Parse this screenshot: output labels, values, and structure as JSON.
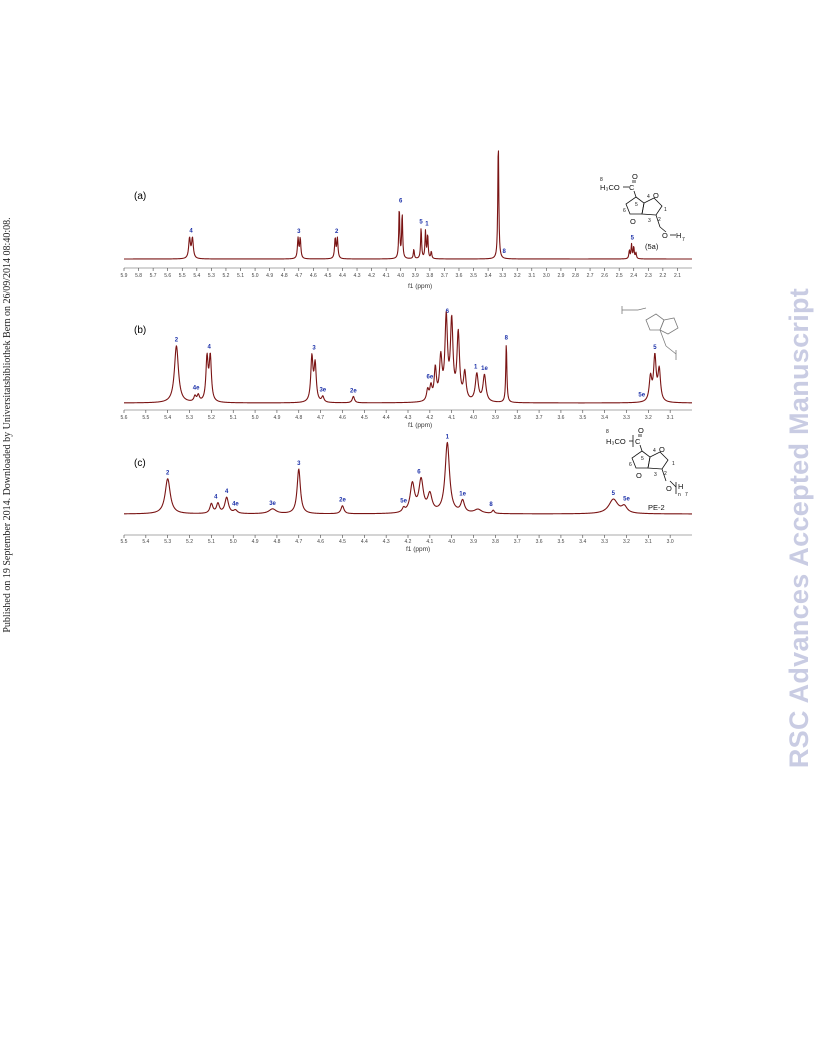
{
  "side_note": "Published on 19 September 2014. Downloaded by Universitatsbibliothek Bern on 26/09/2014 08:40:08.",
  "watermark": "RSC Advances Accepted Manuscript",
  "colors": {
    "trace": "#7a1414",
    "peak_label": "#1a2fa8",
    "watermark": "#c9cce3"
  },
  "chart_data": [
    {
      "type": "line",
      "panel": "(a)",
      "xlabel": "f1 (ppm)",
      "x_reversed": true,
      "xlim": [
        5.9,
        2.0
      ],
      "ylim": [
        0,
        1
      ],
      "x_tick_labels": [
        "5.9",
        "5.8",
        "5.7",
        "5.6",
        "5.5",
        "5.4",
        "5.3",
        "5.2",
        "5.1",
        "5.0",
        "4.9",
        "4.8",
        "4.7",
        "4.6",
        "4.5",
        "4.4",
        "4.3",
        "4.2",
        "4.1",
        "4.0",
        "3.9",
        "3.8",
        "3.7",
        "3.6",
        "3.5",
        "3.4",
        "3.3",
        "3.2",
        "3.1",
        "3.0",
        "2.9",
        "2.8",
        "2.7",
        "2.6",
        "2.5",
        "2.4",
        "2.3",
        "2.2",
        "2.1"
      ],
      "peaks": [
        {
          "ppm": 5.45,
          "height": 0.17,
          "width": 0.007
        },
        {
          "ppm": 5.43,
          "height": 0.17,
          "width": 0.007
        },
        {
          "ppm": 4.705,
          "height": 0.17,
          "width": 0.005
        },
        {
          "ppm": 4.69,
          "height": 0.17,
          "width": 0.005
        },
        {
          "ppm": 4.45,
          "height": 0.17,
          "width": 0.005
        },
        {
          "ppm": 4.435,
          "height": 0.17,
          "width": 0.005
        },
        {
          "ppm": 4.01,
          "height": 0.43,
          "width": 0.004
        },
        {
          "ppm": 3.99,
          "height": 0.38,
          "width": 0.004
        },
        {
          "ppm": 3.91,
          "height": 0.08,
          "width": 0.004
        },
        {
          "ppm": 3.86,
          "height": 0.26,
          "width": 0.004
        },
        {
          "ppm": 3.83,
          "height": 0.23,
          "width": 0.004
        },
        {
          "ppm": 3.815,
          "height": 0.2,
          "width": 0.004
        },
        {
          "ppm": 3.79,
          "height": 0.06,
          "width": 0.004
        },
        {
          "ppm": 3.33,
          "height": 1.0,
          "width": 0.004
        },
        {
          "ppm": 2.43,
          "height": 0.07,
          "width": 0.004
        },
        {
          "ppm": 2.415,
          "height": 0.12,
          "width": 0.004
        },
        {
          "ppm": 2.4,
          "height": 0.1,
          "width": 0.004
        },
        {
          "ppm": 2.385,
          "height": 0.05,
          "width": 0.004
        }
      ],
      "peak_labels": [
        {
          "text": "4",
          "ppm": 5.44
        },
        {
          "text": "3",
          "ppm": 4.7
        },
        {
          "text": "2",
          "ppm": 4.44
        },
        {
          "text": "6",
          "ppm": 4.0
        },
        {
          "text": "5",
          "ppm": 3.86
        },
        {
          "text": "1",
          "ppm": 3.82
        },
        {
          "text": "8",
          "ppm": 3.29
        },
        {
          "text": "5",
          "ppm": 2.41
        }
      ],
      "compound_label": "(5a)"
    },
    {
      "type": "line",
      "panel": "(b)",
      "xlabel": "f1 (ppm)",
      "x_reversed": true,
      "xlim": [
        5.6,
        3.0
      ],
      "ylim": [
        0,
        1
      ],
      "x_tick_labels": [
        "5.6",
        "5.5",
        "5.4",
        "5.3",
        "5.2",
        "5.1",
        "5.0",
        "4.9",
        "4.8",
        "4.7",
        "4.6",
        "4.5",
        "4.4",
        "4.3",
        "4.2",
        "4.1",
        "4.0",
        "3.9",
        "3.8",
        "3.7",
        "3.6",
        "3.5",
        "3.4",
        "3.3",
        "3.2",
        "3.1"
      ],
      "peaks": [
        {
          "ppm": 5.36,
          "height": 0.62,
          "width": 0.011
        },
        {
          "ppm": 5.275,
          "height": 0.06,
          "width": 0.006
        },
        {
          "ppm": 5.26,
          "height": 0.07,
          "width": 0.006
        },
        {
          "ppm": 5.22,
          "height": 0.47,
          "width": 0.006
        },
        {
          "ppm": 5.205,
          "height": 0.48,
          "width": 0.006
        },
        {
          "ppm": 4.74,
          "height": 0.48,
          "width": 0.006
        },
        {
          "ppm": 4.725,
          "height": 0.4,
          "width": 0.006
        },
        {
          "ppm": 4.69,
          "height": 0.06,
          "width": 0.006
        },
        {
          "ppm": 4.55,
          "height": 0.07,
          "width": 0.006
        },
        {
          "ppm": 4.21,
          "height": 0.12,
          "width": 0.006
        },
        {
          "ppm": 4.195,
          "height": 0.15,
          "width": 0.006
        },
        {
          "ppm": 4.175,
          "height": 0.34,
          "width": 0.006
        },
        {
          "ppm": 4.15,
          "height": 0.45,
          "width": 0.007
        },
        {
          "ppm": 4.125,
          "height": 0.88,
          "width": 0.007
        },
        {
          "ppm": 4.1,
          "height": 0.84,
          "width": 0.007
        },
        {
          "ppm": 4.07,
          "height": 0.72,
          "width": 0.007
        },
        {
          "ppm": 4.04,
          "height": 0.3,
          "width": 0.007
        },
        {
          "ppm": 3.985,
          "height": 0.3,
          "width": 0.008
        },
        {
          "ppm": 3.95,
          "height": 0.29,
          "width": 0.008
        },
        {
          "ppm": 3.85,
          "height": 0.64,
          "width": 0.003
        },
        {
          "ppm": 3.19,
          "height": 0.26,
          "width": 0.007
        },
        {
          "ppm": 3.17,
          "height": 0.48,
          "width": 0.007
        },
        {
          "ppm": 3.15,
          "height": 0.34,
          "width": 0.007
        }
      ],
      "peak_labels": [
        {
          "text": "2",
          "ppm": 5.36
        },
        {
          "text": "4e",
          "ppm": 5.27
        },
        {
          "text": "4",
          "ppm": 5.21
        },
        {
          "text": "3",
          "ppm": 4.73
        },
        {
          "text": "3e",
          "ppm": 4.69
        },
        {
          "text": "2e",
          "ppm": 4.55
        },
        {
          "text": "6e",
          "ppm": 4.2
        },
        {
          "text": "6",
          "ppm": 4.12
        },
        {
          "text": "1",
          "ppm": 3.99
        },
        {
          "text": "1e",
          "ppm": 3.95
        },
        {
          "text": "8",
          "ppm": 3.85
        },
        {
          "text": "5e",
          "ppm": 3.23
        },
        {
          "text": "5",
          "ppm": 3.17
        }
      ]
    },
    {
      "type": "line",
      "panel": "(c)",
      "xlabel": "f1 (ppm)",
      "x_reversed": true,
      "xlim": [
        5.5,
        2.9
      ],
      "ylim": [
        0,
        1
      ],
      "x_tick_labels": [
        "5.5",
        "5.4",
        "5.3",
        "5.2",
        "5.1",
        "5.0",
        "4.9",
        "4.8",
        "4.7",
        "4.6",
        "4.5",
        "4.4",
        "4.3",
        "4.2",
        "4.1",
        "4.0",
        "3.9",
        "3.8",
        "3.7",
        "3.6",
        "3.5",
        "3.4",
        "3.3",
        "3.2",
        "3.1",
        "3.0"
      ],
      "peaks": [
        {
          "ppm": 5.3,
          "height": 0.44,
          "width": 0.014
        },
        {
          "ppm": 5.1,
          "height": 0.12,
          "width": 0.008
        },
        {
          "ppm": 5.07,
          "height": 0.12,
          "width": 0.008
        },
        {
          "ppm": 5.03,
          "height": 0.2,
          "width": 0.01
        },
        {
          "ppm": 4.99,
          "height": 0.04,
          "width": 0.01
        },
        {
          "ppm": 4.82,
          "height": 0.06,
          "width": 0.02
        },
        {
          "ppm": 4.7,
          "height": 0.56,
          "width": 0.009
        },
        {
          "ppm": 4.5,
          "height": 0.1,
          "width": 0.008
        },
        {
          "ppm": 4.22,
          "height": 0.05,
          "width": 0.007
        },
        {
          "ppm": 4.18,
          "height": 0.36,
          "width": 0.012
        },
        {
          "ppm": 4.14,
          "height": 0.4,
          "width": 0.012
        },
        {
          "ppm": 4.1,
          "height": 0.22,
          "width": 0.012
        },
        {
          "ppm": 4.02,
          "height": 0.88,
          "width": 0.012
        },
        {
          "ppm": 3.95,
          "height": 0.15,
          "width": 0.01
        },
        {
          "ppm": 3.88,
          "height": 0.05,
          "width": 0.02
        },
        {
          "ppm": 3.81,
          "height": 0.04,
          "width": 0.006
        },
        {
          "ppm": 3.26,
          "height": 0.18,
          "width": 0.025
        },
        {
          "ppm": 3.21,
          "height": 0.08,
          "width": 0.015
        }
      ],
      "peak_labels": [
        {
          "text": "2",
          "ppm": 5.3
        },
        {
          "text": "4",
          "ppm": 5.08
        },
        {
          "text": "4",
          "ppm": 5.03
        },
        {
          "text": "4e",
          "ppm": 4.99
        },
        {
          "text": "3e",
          "ppm": 4.82
        },
        {
          "text": "3",
          "ppm": 4.7
        },
        {
          "text": "2e",
          "ppm": 4.5
        },
        {
          "text": "5e",
          "ppm": 4.22
        },
        {
          "text": "6",
          "ppm": 4.15
        },
        {
          "text": "1",
          "ppm": 4.02
        },
        {
          "text": "1e",
          "ppm": 3.95
        },
        {
          "text": "8",
          "ppm": 3.82
        },
        {
          "text": "5",
          "ppm": 3.26
        },
        {
          "text": "5e",
          "ppm": 3.2
        }
      ],
      "compound_label": "PE-2"
    }
  ],
  "structure_labels": {
    "methyl_number": "8",
    "methyl_group": "H₃CO",
    "carbonyl_o": "O",
    "ring_o": "O",
    "oh": "O",
    "h": "H",
    "n": "n",
    "seven": "7",
    "atom_numbers": [
      "1",
      "2",
      "3",
      "4",
      "5",
      "6"
    ]
  }
}
